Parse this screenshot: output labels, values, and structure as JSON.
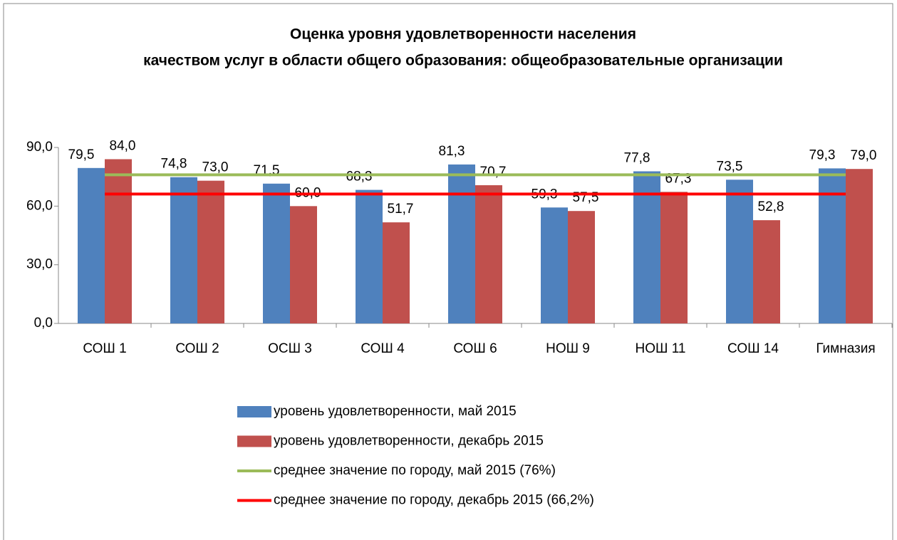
{
  "chart_data": {
    "type": "bar",
    "title": [
      "Оценка уровня удовлетворенности населения",
      "качеством услуг в области общего образования: общеобразовательные организации"
    ],
    "categories": [
      "СОШ 1",
      "СОШ 2",
      "ОСШ 3",
      "СОШ 4",
      "СОШ 6",
      "НОШ 9",
      "НОШ 11",
      "СОШ 14",
      "Гимназия"
    ],
    "series": [
      {
        "name": "уровень удовлетворенности, май 2015",
        "color": "#4f81bd",
        "kind": "bar",
        "values": [
          79.5,
          74.8,
          71.5,
          68.3,
          81.3,
          59.3,
          77.8,
          73.5,
          79.3
        ],
        "value_labels": [
          "79,5",
          "74,8",
          "71,5",
          "68,3",
          "81,3",
          "59,3",
          "77,8",
          "73,5",
          "79,3"
        ]
      },
      {
        "name": "уровень удовлетворенности, декабрь 2015",
        "color": "#c0504d",
        "kind": "bar",
        "values": [
          84.0,
          73.0,
          60.0,
          51.7,
          70.7,
          57.5,
          67.3,
          52.8,
          79.0
        ],
        "value_labels": [
          "84,0",
          "73,0",
          "60,0",
          "51,7",
          "70,7",
          "57,5",
          "67,3",
          "52,8",
          "79,0"
        ]
      },
      {
        "name": "среднее значение по городу, май 2015 (76%)",
        "color": "#9bbb59",
        "kind": "line",
        "values": [
          76,
          76,
          76,
          76,
          76,
          76,
          76,
          76,
          76
        ]
      },
      {
        "name": "среднее значение по городу, декабрь 2015 (66,2%)",
        "color": "#ff0000",
        "kind": "line",
        "values": [
          66.2,
          66.2,
          66.2,
          66.2,
          66.2,
          66.2,
          66.2,
          66.2,
          66.2
        ]
      }
    ],
    "ylim": [
      0,
      90
    ],
    "yticks": [
      {
        "value": 0,
        "label": "0,0"
      },
      {
        "value": 30,
        "label": "30,0"
      },
      {
        "value": 60,
        "label": "60,0"
      },
      {
        "value": 90,
        "label": "90,0"
      }
    ],
    "legend": "bottom"
  }
}
